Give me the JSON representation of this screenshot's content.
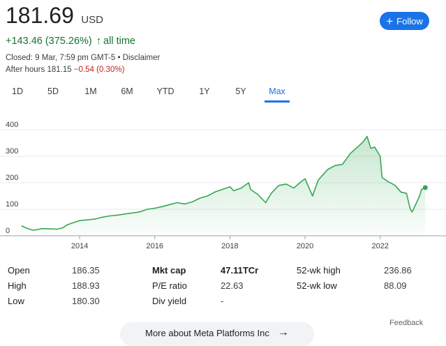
{
  "quote": {
    "price": "181.69",
    "currency": "USD",
    "change": "+143.46 (375.26%)",
    "change_arrow": "↑",
    "change_period": "all time",
    "closed": "Closed: 9 Mar, 7:59 pm GMT-5",
    "separator": "•",
    "disclaimer": "Disclaimer",
    "after_hours_label": "After hours",
    "after_hours_price": "181.15",
    "after_hours_change": "−0.54 (0.30%)"
  },
  "follow": {
    "label": "Follow",
    "icon": "plus-icon"
  },
  "tabs": [
    {
      "label": "1D",
      "active": false
    },
    {
      "label": "5D",
      "active": false
    },
    {
      "label": "1M",
      "active": false
    },
    {
      "label": "6M",
      "active": false
    },
    {
      "label": "YTD",
      "active": false
    },
    {
      "label": "1Y",
      "active": false
    },
    {
      "label": "5Y",
      "active": false
    },
    {
      "label": "Max",
      "active": true
    }
  ],
  "colors": {
    "up": "#137333",
    "line": "#34a853",
    "accent": "#1a73e8",
    "negative": "#c5221f"
  },
  "chart_data": {
    "type": "area",
    "y_ticks": [
      "0",
      "100",
      "200",
      "300",
      "400"
    ],
    "ylim": [
      0,
      400
    ],
    "x_ticks": [
      "2014",
      "2016",
      "2018",
      "2020",
      "2022"
    ],
    "xlim": [
      2012.4,
      2023.25
    ],
    "grid": true,
    "series": [
      {
        "values": [
          [
            2012.45,
            38
          ],
          [
            2012.6,
            28
          ],
          [
            2012.75,
            21
          ],
          [
            2012.9,
            24
          ],
          [
            2013.0,
            27
          ],
          [
            2013.2,
            26
          ],
          [
            2013.4,
            25
          ],
          [
            2013.55,
            30
          ],
          [
            2013.65,
            40
          ],
          [
            2013.8,
            48
          ],
          [
            2014.0,
            57
          ],
          [
            2014.2,
            60
          ],
          [
            2014.4,
            63
          ],
          [
            2014.6,
            70
          ],
          [
            2014.8,
            75
          ],
          [
            2015.0,
            78
          ],
          [
            2015.2,
            82
          ],
          [
            2015.4,
            86
          ],
          [
            2015.6,
            90
          ],
          [
            2015.8,
            100
          ],
          [
            2016.0,
            104
          ],
          [
            2016.2,
            110
          ],
          [
            2016.4,
            118
          ],
          [
            2016.6,
            125
          ],
          [
            2016.8,
            120
          ],
          [
            2017.0,
            128
          ],
          [
            2017.2,
            142
          ],
          [
            2017.4,
            150
          ],
          [
            2017.6,
            165
          ],
          [
            2017.8,
            175
          ],
          [
            2018.0,
            185
          ],
          [
            2018.1,
            170
          ],
          [
            2018.3,
            180
          ],
          [
            2018.5,
            200
          ],
          [
            2018.55,
            175
          ],
          [
            2018.75,
            155
          ],
          [
            2018.95,
            125
          ],
          [
            2019.1,
            160
          ],
          [
            2019.3,
            190
          ],
          [
            2019.5,
            195
          ],
          [
            2019.7,
            180
          ],
          [
            2019.9,
            205
          ],
          [
            2020.0,
            215
          ],
          [
            2020.2,
            150
          ],
          [
            2020.35,
            210
          ],
          [
            2020.6,
            250
          ],
          [
            2020.8,
            265
          ],
          [
            2021.0,
            270
          ],
          [
            2021.2,
            310
          ],
          [
            2021.4,
            335
          ],
          [
            2021.55,
            355
          ],
          [
            2021.65,
            375
          ],
          [
            2021.75,
            330
          ],
          [
            2021.85,
            335
          ],
          [
            2022.0,
            300
          ],
          [
            2022.05,
            220
          ],
          [
            2022.2,
            205
          ],
          [
            2022.4,
            190
          ],
          [
            2022.55,
            165
          ],
          [
            2022.7,
            160
          ],
          [
            2022.8,
            100
          ],
          [
            2022.85,
            90
          ],
          [
            2022.95,
            120
          ],
          [
            2023.05,
            150
          ],
          [
            2023.1,
            175
          ],
          [
            2023.2,
            181.69
          ]
        ]
      }
    ]
  },
  "stats": [
    {
      "label": "Open",
      "value": "186.35",
      "bold": false
    },
    {
      "label": "High",
      "value": "188.93",
      "bold": false
    },
    {
      "label": "Low",
      "value": "180.30",
      "bold": false
    },
    {
      "label": "Mkt cap",
      "value": "47.11TCr",
      "bold": true
    },
    {
      "label": "P/E ratio",
      "value": "22.63",
      "bold": false
    },
    {
      "label": "Div yield",
      "value": "-",
      "bold": false
    },
    {
      "label": "52-wk high",
      "value": "236.86",
      "bold": false
    },
    {
      "label": "52-wk low",
      "value": "88.09",
      "bold": false
    }
  ],
  "footer": {
    "feedback": "Feedback",
    "more_label": "More about Meta Platforms Inc",
    "more_arrow": "→"
  }
}
